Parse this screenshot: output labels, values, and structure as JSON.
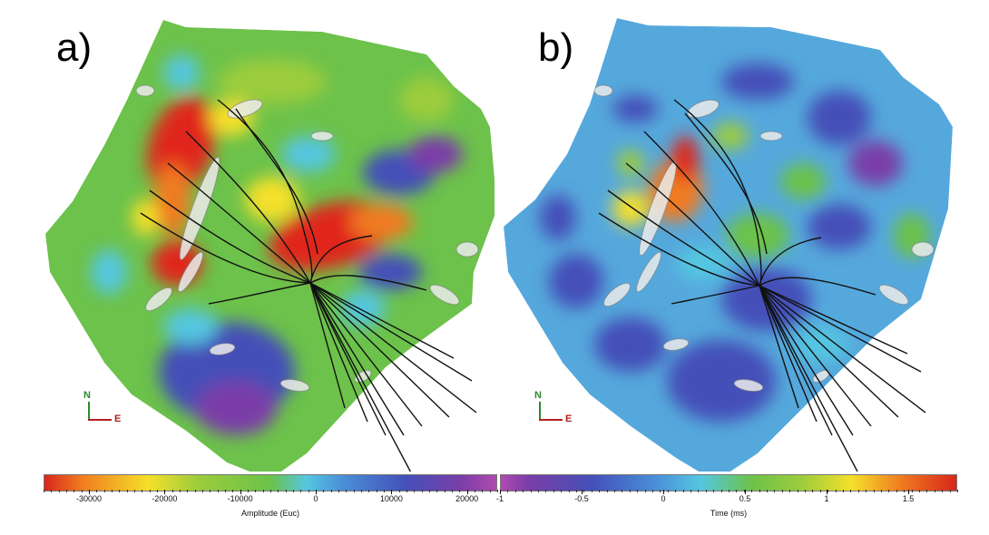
{
  "panels": [
    {
      "label": "a)",
      "colorbar": {
        "title": "Amplitude (Euc)",
        "min": -36000,
        "max": 24000,
        "ticks": [
          -30000,
          -20000,
          -10000,
          0,
          10000,
          20000
        ],
        "tick_labels": [
          "-30000",
          "-20000",
          "-10000",
          "0",
          "10000",
          "20000"
        ],
        "colors": [
          "#d8261b",
          "#f5e02a",
          "#6cc24a",
          "#55c6e0",
          "#4450b8",
          "#b04ab0"
        ]
      },
      "compass": {
        "north": "N",
        "east": "E"
      }
    },
    {
      "label": "b)",
      "colorbar": {
        "title": "Time (ms)",
        "min": -1,
        "max": 1.8,
        "ticks": [
          -1,
          -0.5,
          0,
          0.5,
          1,
          1.5
        ],
        "tick_labels": [
          "-1",
          "-0.5",
          "0",
          "0.5",
          "1",
          "1.5"
        ],
        "colors": [
          "#b04ab0",
          "#4450b8",
          "#55c6e0",
          "#6cc24a",
          "#f5e02a",
          "#d8261b"
        ]
      },
      "compass": {
        "north": "N",
        "east": "E"
      }
    }
  ]
}
